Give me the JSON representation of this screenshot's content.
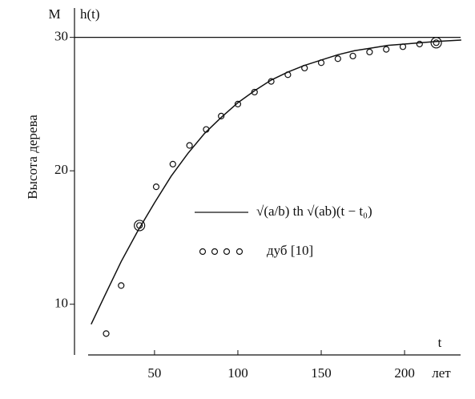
{
  "chart_data": {
    "type": "line",
    "y_unit": "М",
    "y_name": "h(t)",
    "x_name": "t",
    "x_unit": "лет",
    "y_label": "Высота дерева",
    "xlim": [
      2,
      236
    ],
    "ylim": [
      6.2,
      32.2
    ],
    "xticks": [
      50,
      100,
      150,
      200
    ],
    "yticks": [
      10,
      20,
      30
    ],
    "reference_line": 30,
    "series": [
      {
        "name": "√(a/b) th √(ab)(t − t₀)",
        "type": "line",
        "color": "#111111",
        "x": [
          12,
          20,
          30,
          40,
          50,
          60,
          70,
          80,
          90,
          100,
          110,
          120,
          130,
          140,
          150,
          160,
          170,
          180,
          190,
          200,
          210,
          220,
          234
        ],
        "values": [
          8.5,
          10.6,
          13.2,
          15.5,
          17.6,
          19.6,
          21.3,
          22.8,
          24.0,
          25.1,
          26.0,
          26.8,
          27.4,
          27.9,
          28.3,
          28.7,
          29.0,
          29.2,
          29.4,
          29.5,
          29.6,
          29.7,
          29.8
        ]
      },
      {
        "name": "дуб [10]",
        "type": "scatter",
        "color": "#111111",
        "double_ring": [
          2,
          20
        ],
        "x": [
          21,
          30,
          41,
          51,
          61,
          71,
          81,
          90,
          100,
          110,
          120,
          130,
          140,
          150,
          160,
          169,
          179,
          189,
          199,
          209,
          219
        ],
        "values": [
          7.8,
          11.4,
          15.9,
          18.8,
          20.5,
          21.9,
          23.1,
          24.1,
          25.0,
          25.9,
          26.7,
          27.2,
          27.7,
          28.1,
          28.4,
          28.6,
          28.9,
          29.1,
          29.3,
          29.5,
          29.6
        ]
      }
    ]
  }
}
